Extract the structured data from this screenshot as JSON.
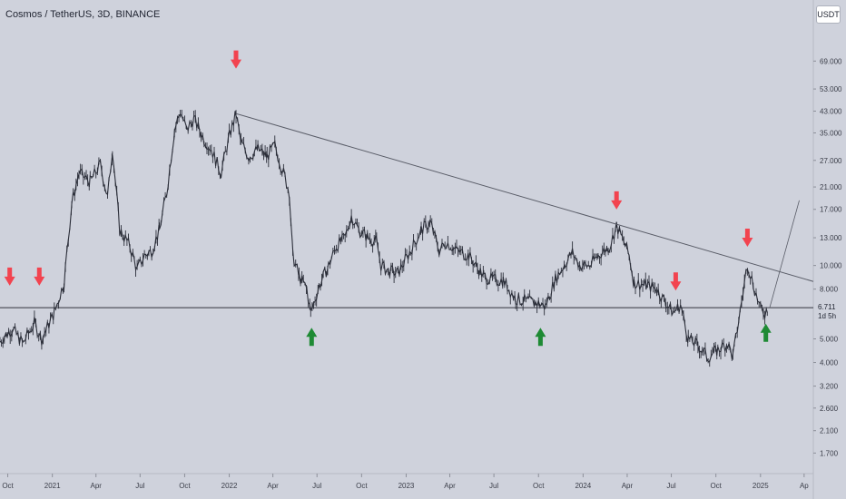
{
  "header": {
    "title": "Cosmos / TetherUS, 3D, BINANCE",
    "unit_button": "USDT"
  },
  "colors": {
    "background": "#cfd2dc",
    "candle": "#2b2e39",
    "trendline": "#5a5d68",
    "support_line": "#30333e",
    "arrow_down": "#f2434f",
    "arrow_up": "#1e8a34",
    "price_label_bg": "#cfd2dc"
  },
  "chart_data": {
    "type": "line",
    "title": "Cosmos / TetherUS, 3D, BINANCE",
    "yscale": "log",
    "ylim": [
      1.4,
      95
    ],
    "xlim": [
      "2020-09-15",
      "2025-04-20"
    ],
    "y_tick_labels": [
      "69.000",
      "53.000",
      "43.000",
      "35.000",
      "27.000",
      "21.000",
      "17.000",
      "13.000",
      "10.000",
      "8.000",
      "5.000",
      "4.000",
      "3.200",
      "2.600",
      "2.100",
      "1.700"
    ],
    "x_tick_labels": [
      {
        "label": "Oct",
        "date": "2020-10-01"
      },
      {
        "label": "2021",
        "date": "2021-01-01"
      },
      {
        "label": "Apr",
        "date": "2021-04-01"
      },
      {
        "label": "Jul",
        "date": "2021-07-01"
      },
      {
        "label": "Oct",
        "date": "2021-10-01"
      },
      {
        "label": "2022",
        "date": "2022-01-01"
      },
      {
        "label": "Apr",
        "date": "2022-04-01"
      },
      {
        "label": "Jul",
        "date": "2022-07-01"
      },
      {
        "label": "Oct",
        "date": "2022-10-01"
      },
      {
        "label": "2023",
        "date": "2023-01-01"
      },
      {
        "label": "Apr",
        "date": "2023-04-01"
      },
      {
        "label": "Jul",
        "date": "2023-07-01"
      },
      {
        "label": "Oct",
        "date": "2023-10-01"
      },
      {
        "label": "2024",
        "date": "2024-01-01"
      },
      {
        "label": "Apr",
        "date": "2024-04-01"
      },
      {
        "label": "Jul",
        "date": "2024-07-01"
      },
      {
        "label": "Oct",
        "date": "2024-10-01"
      },
      {
        "label": "2025",
        "date": "2025-01-01"
      },
      {
        "label": "Ap",
        "date": "2025-04-01"
      }
    ],
    "series": [
      {
        "points": [
          [
            "2020-09-15",
            4.9
          ],
          [
            "2020-10-10",
            5.5
          ],
          [
            "2020-11-01",
            4.8
          ],
          [
            "2020-11-25",
            5.8
          ],
          [
            "2020-12-10",
            5.0
          ],
          [
            "2021-01-05",
            6.4
          ],
          [
            "2021-01-25",
            8.5
          ],
          [
            "2021-02-10",
            18.0
          ],
          [
            "2021-02-25",
            24.0
          ],
          [
            "2021-03-20",
            22.0
          ],
          [
            "2021-04-10",
            26.0
          ],
          [
            "2021-04-25",
            19.0
          ],
          [
            "2021-05-05",
            30.0
          ],
          [
            "2021-05-20",
            14.0
          ],
          [
            "2021-06-10",
            12.0
          ],
          [
            "2021-06-25",
            9.6
          ],
          [
            "2021-07-10",
            11.0
          ],
          [
            "2021-07-25",
            11.5
          ],
          [
            "2021-08-10",
            14.0
          ],
          [
            "2021-08-25",
            20.0
          ],
          [
            "2021-09-10",
            36.0
          ],
          [
            "2021-09-22",
            43.0
          ],
          [
            "2021-10-05",
            36.0
          ],
          [
            "2021-10-20",
            40.0
          ],
          [
            "2021-11-10",
            33.0
          ],
          [
            "2021-11-25",
            30.0
          ],
          [
            "2021-12-15",
            24.0
          ],
          [
            "2022-01-01",
            34.0
          ],
          [
            "2022-01-15",
            42.0
          ],
          [
            "2022-01-25",
            32.0
          ],
          [
            "2022-02-10",
            28.0
          ],
          [
            "2022-03-01",
            30.0
          ],
          [
            "2022-03-20",
            28.0
          ],
          [
            "2022-04-05",
            31.0
          ],
          [
            "2022-04-20",
            25.0
          ],
          [
            "2022-05-05",
            20.0
          ],
          [
            "2022-05-12",
            11.0
          ],
          [
            "2022-05-25",
            9.0
          ],
          [
            "2022-06-10",
            8.0
          ],
          [
            "2022-06-18",
            6.4
          ],
          [
            "2022-07-05",
            8.2
          ],
          [
            "2022-07-25",
            10.0
          ],
          [
            "2022-08-10",
            12.0
          ],
          [
            "2022-08-28",
            13.0
          ],
          [
            "2022-09-10",
            16.0
          ],
          [
            "2022-09-25",
            14.0
          ],
          [
            "2022-10-15",
            13.0
          ],
          [
            "2022-11-01",
            12.5
          ],
          [
            "2022-11-10",
            10.0
          ],
          [
            "2022-11-25",
            9.5
          ],
          [
            "2022-12-15",
            9.3
          ],
          [
            "2023-01-10",
            11.5
          ],
          [
            "2023-02-01",
            14.0
          ],
          [
            "2023-02-20",
            15.0
          ],
          [
            "2023-03-10",
            11.5
          ],
          [
            "2023-03-25",
            12.5
          ],
          [
            "2023-04-15",
            11.5
          ],
          [
            "2023-05-10",
            11.0
          ],
          [
            "2023-06-10",
            9.0
          ],
          [
            "2023-07-01",
            8.7
          ],
          [
            "2023-07-20",
            8.7
          ],
          [
            "2023-08-15",
            7.3
          ],
          [
            "2023-09-10",
            7.1
          ],
          [
            "2023-10-01",
            7.0
          ],
          [
            "2023-10-15",
            6.8
          ],
          [
            "2023-11-05",
            8.8
          ],
          [
            "2023-11-25",
            10.2
          ],
          [
            "2023-12-10",
            11.3
          ],
          [
            "2023-12-25",
            10.0
          ],
          [
            "2024-01-15",
            10.0
          ],
          [
            "2024-02-01",
            11.0
          ],
          [
            "2024-02-25",
            12.0
          ],
          [
            "2024-03-10",
            14.5
          ],
          [
            "2024-03-25",
            12.5
          ],
          [
            "2024-04-05",
            11.0
          ],
          [
            "2024-04-15",
            8.5
          ],
          [
            "2024-05-10",
            8.3
          ],
          [
            "2024-06-01",
            8.0
          ],
          [
            "2024-06-20",
            7.0
          ],
          [
            "2024-07-05",
            6.4
          ],
          [
            "2024-07-20",
            6.9
          ],
          [
            "2024-08-05",
            5.0
          ],
          [
            "2024-08-25",
            4.7
          ],
          [
            "2024-09-15",
            4.2
          ],
          [
            "2024-10-05",
            4.5
          ],
          [
            "2024-10-25",
            4.8
          ],
          [
            "2024-11-05",
            4.2
          ],
          [
            "2024-11-20",
            6.5
          ],
          [
            "2024-12-05",
            10.2
          ],
          [
            "2024-12-20",
            8.0
          ],
          [
            "2025-01-01",
            6.6
          ],
          [
            "2025-01-10",
            6.4
          ],
          [
            "2025-01-15",
            6.711
          ]
        ]
      }
    ],
    "lines": [
      {
        "kind": "trendline",
        "from": [
          "2022-01-15",
          42.0
        ],
        "to": [
          "2025-04-20",
          8.6
        ]
      },
      {
        "kind": "support",
        "y": 6.711
      },
      {
        "kind": "projection",
        "from": [
          "2025-01-20",
          6.711
        ],
        "to": [
          "2025-03-22",
          18.5
        ]
      }
    ],
    "markers": [
      {
        "type": "down",
        "date": "2020-10-05",
        "price": 9.0
      },
      {
        "type": "down",
        "date": "2020-12-05",
        "price": 9.0
      },
      {
        "type": "down",
        "date": "2022-01-15",
        "price": 70.0
      },
      {
        "type": "up",
        "date": "2022-06-20",
        "price": 5.1
      },
      {
        "type": "up",
        "date": "2023-10-05",
        "price": 5.1
      },
      {
        "type": "down",
        "date": "2024-03-10",
        "price": 18.5
      },
      {
        "type": "down",
        "date": "2024-07-10",
        "price": 8.6
      },
      {
        "type": "down",
        "date": "2024-12-05",
        "price": 13.0
      },
      {
        "type": "up",
        "date": "2025-01-12",
        "price": 5.3
      }
    ],
    "last_price_label": "6.711",
    "countdown_label": "1d 5h"
  }
}
